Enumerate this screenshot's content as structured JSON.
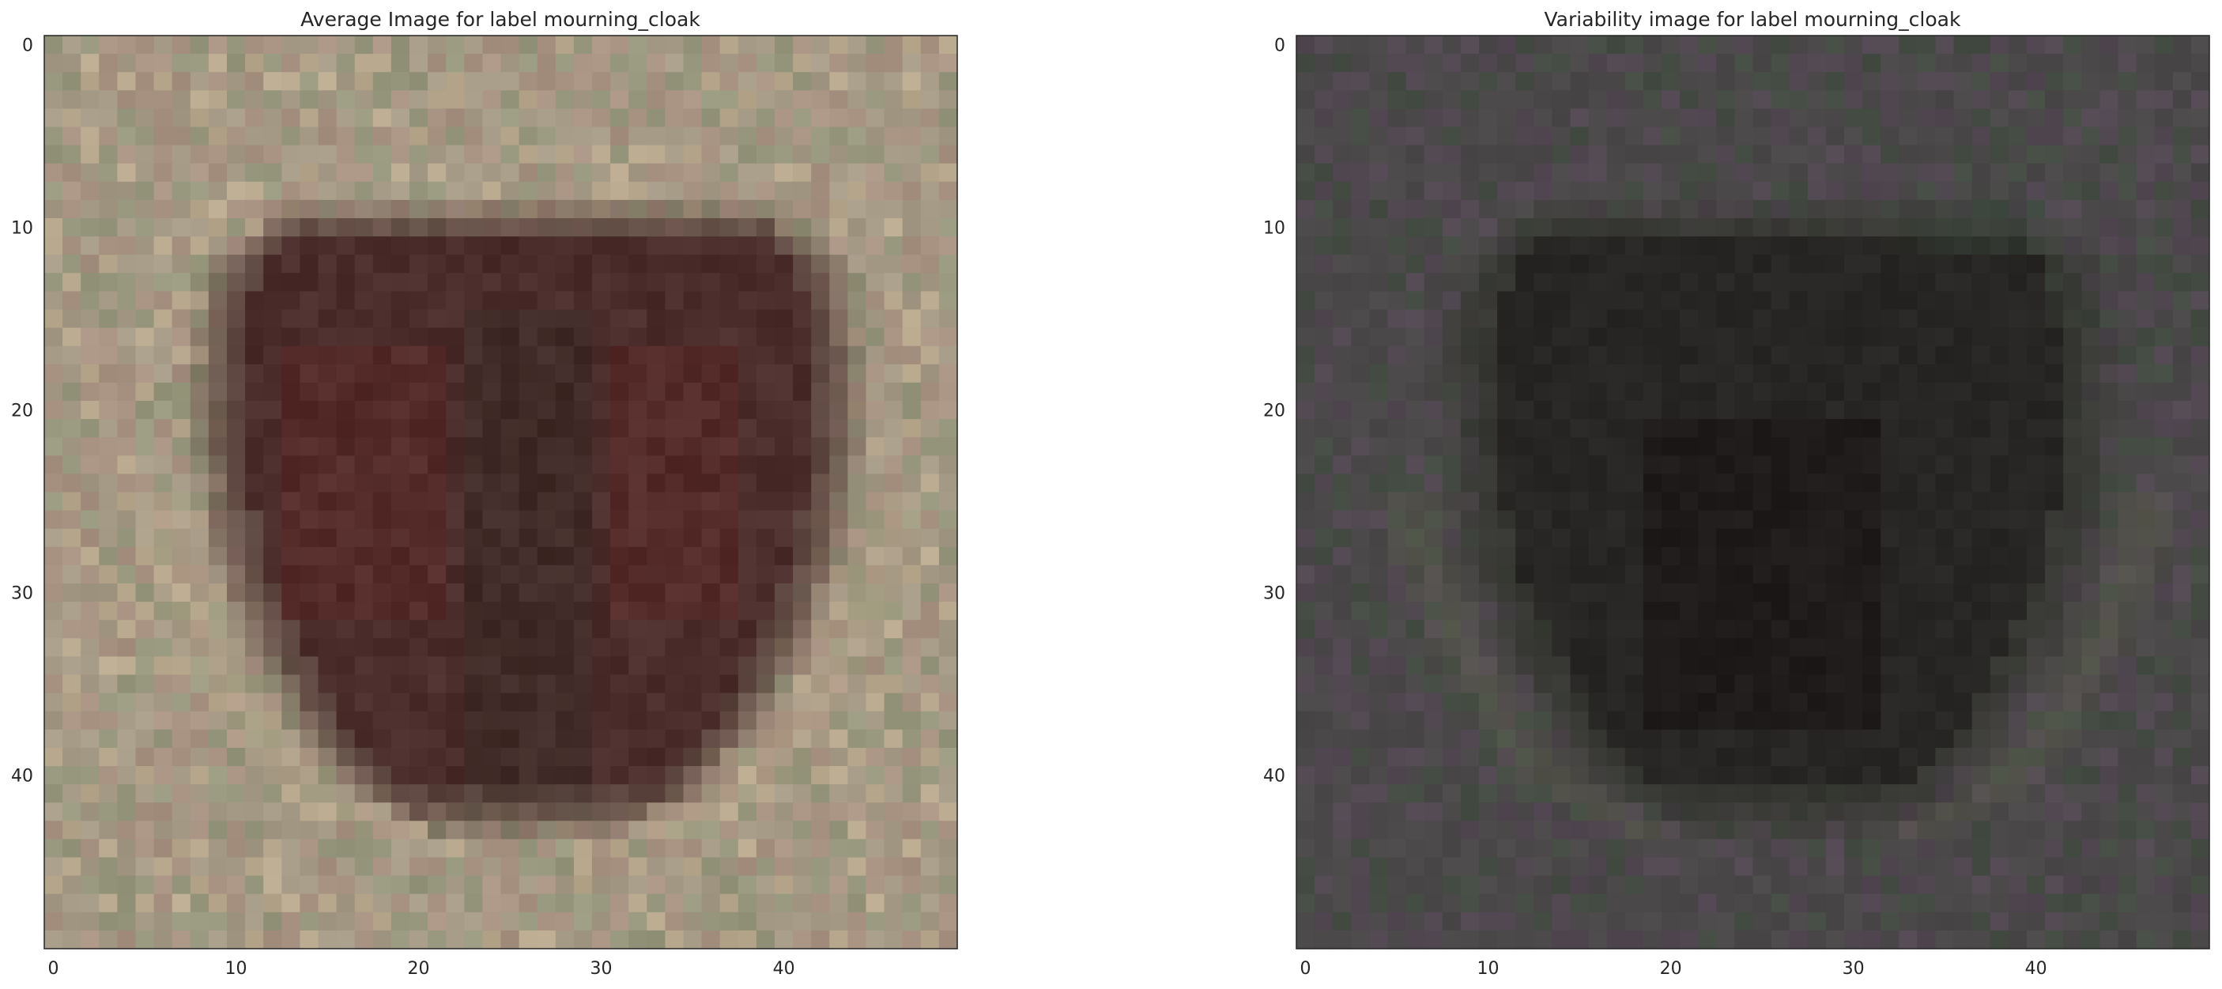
{
  "chart_data": [
    {
      "type": "heatmap",
      "title": "Average Image for label mourning_cloak",
      "xlabel": "",
      "ylabel": "",
      "grid_size": 50,
      "xlim": [
        -0.5,
        49.5
      ],
      "ylim": [
        49.5,
        -0.5
      ],
      "xticks": [
        0,
        10,
        20,
        30,
        40
      ],
      "yticks": [
        0,
        10,
        20,
        30,
        40
      ],
      "grid": false,
      "colors": {
        "background": "#a59a86",
        "background_warm": "#a89282",
        "background_green": "#96977c",
        "background_light": "#b7a88e",
        "wing": "#4b2e2c",
        "wing_red": "#582a28",
        "body": "#3b2a26",
        "edge": "#6b5a50",
        "band": "#b6a48a"
      }
    },
    {
      "type": "heatmap",
      "title": "Variability image for label mourning_cloak",
      "xlabel": "",
      "ylabel": "",
      "grid_size": 50,
      "xlim": [
        -0.5,
        49.5
      ],
      "ylim": [
        49.5,
        -0.5
      ],
      "xticks": [
        0,
        10,
        20,
        30,
        40
      ],
      "yticks": [
        0,
        10,
        20,
        30,
        40
      ],
      "grid": false,
      "colors": {
        "background": "#4a4848",
        "background_purple": "#514852",
        "background_green": "#444c44",
        "wing": "#282624",
        "body": "#1a1616",
        "edge": "#4a5046",
        "band": "#5a5c4c",
        "green_patch": "#3c5040"
      }
    }
  ]
}
